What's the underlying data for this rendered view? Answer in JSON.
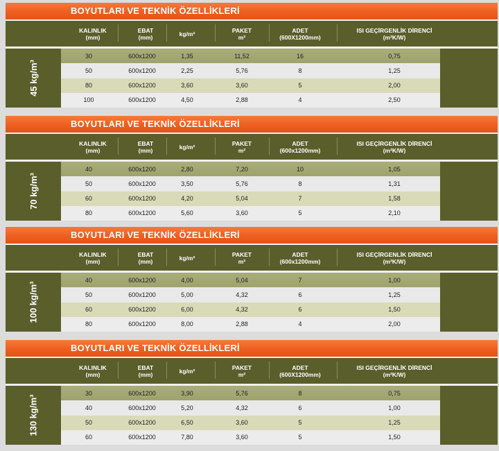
{
  "colors": {
    "title_bar": "#ee5f1f",
    "olive": "#5a5e2b",
    "row_highlight": "#a8ad7a",
    "row_light": "#e9e9e9",
    "row_tint": "#d9dbb8"
  },
  "headers": {
    "kalinlik": "KALINLIK",
    "kalinlik_unit": "(mm)",
    "ebat": "EBAT",
    "ebat_unit": "(mm)",
    "kg": "kg/m²",
    "paket": "PAKET",
    "paket_unit": "m²",
    "adet": "ADET",
    "adet_unit_a": "(600X1200mm)",
    "adet_unit_b": "(600x1200mm)",
    "isi": "ISI GEÇİRGENLİK DİRENCİ",
    "isi_unit": "(m²K/W)"
  },
  "blocks": [
    {
      "title": "BOYUTLARI VE TEKNİK ÖZELLİKLERİ",
      "density": "45 kg/m³",
      "rows": [
        [
          "30",
          "600x1200",
          "1,35",
          "11,52",
          "16",
          "0,75"
        ],
        [
          "50",
          "600x1200",
          "2,25",
          "5,76",
          "8",
          "1,25"
        ],
        [
          "80",
          "600x1200",
          "3,60",
          "3,60",
          "5",
          "2,00"
        ],
        [
          "100",
          "600x1200",
          "4,50",
          "2,88",
          "4",
          "2,50"
        ]
      ]
    },
    {
      "title": "BOYUTLARI VE TEKNİK ÖZELLİKLERİ",
      "density": "70 kg/m³",
      "rows": [
        [
          "40",
          "600x1200",
          "2,80",
          "7,20",
          "10",
          "1,05"
        ],
        [
          "50",
          "600x1200",
          "3,50",
          "5,76",
          "8",
          "1,31"
        ],
        [
          "60",
          "600x1200",
          "4,20",
          "5,04",
          "7",
          "1,58"
        ],
        [
          "80",
          "600x1200",
          "5,60",
          "3,60",
          "5",
          "2,10"
        ]
      ]
    },
    {
      "title": "BOYUTLARI VE TEKNİK ÖZELLİKLERİ",
      "density": "100 kg/m³",
      "rows": [
        [
          "40",
          "600x1200",
          "4,00",
          "5,04",
          "7",
          "1,00"
        ],
        [
          "50",
          "600x1200",
          "5,00",
          "4,32",
          "6",
          "1,25"
        ],
        [
          "60",
          "600x1200",
          "6,00",
          "4,32",
          "6",
          "1,50"
        ],
        [
          "80",
          "600x1200",
          "8,00",
          "2,88",
          "4",
          "2,00"
        ]
      ]
    },
    {
      "title": "BOYUTLARI VE TEKNİK ÖZELLİKLERİ",
      "density": "130 kg/m³",
      "rows": [
        [
          "30",
          "600x1200",
          "3,90",
          "5,76",
          "8",
          "0,75"
        ],
        [
          "40",
          "600x1200",
          "5,20",
          "4,32",
          "6",
          "1,00"
        ],
        [
          "50",
          "600x1200",
          "6,50",
          "3,60",
          "5",
          "1,25"
        ],
        [
          "60",
          "600x1200",
          "7,80",
          "3,60",
          "5",
          "1,50"
        ]
      ]
    }
  ]
}
